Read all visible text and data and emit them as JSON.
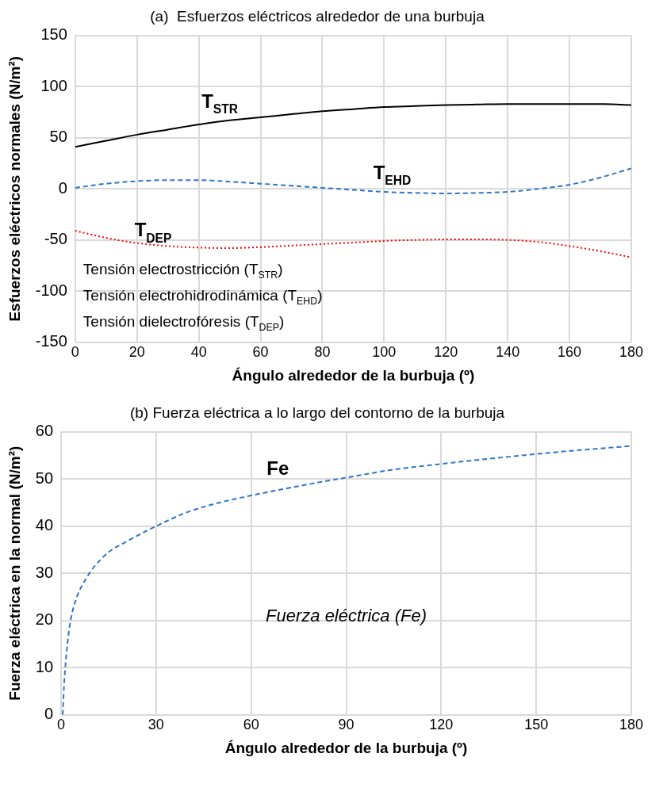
{
  "chart_data": [
    {
      "type": "line",
      "title": "(a)  Esfuerzos eléctricos alrededor de una burbuja",
      "xlabel": "Ángulo alrededor de la burbuja (º)",
      "ylabel": "Esfuerzos eléctricos normales (N/m²)",
      "x": [
        0,
        10,
        20,
        30,
        40,
        50,
        60,
        70,
        80,
        90,
        100,
        110,
        120,
        130,
        140,
        150,
        160,
        170,
        180
      ],
      "series": [
        {
          "name": "T$_{STR}$",
          "color": "#000000",
          "line_style": "solid",
          "values": [
            41,
            47,
            53,
            58,
            63,
            67,
            70,
            73,
            76,
            78,
            80,
            81,
            82,
            82.5,
            83,
            83,
            83,
            83,
            82
          ]
        },
        {
          "name": "T$_{EHD}$",
          "color": "#2e75c6",
          "line_style": "dashed",
          "values": [
            1,
            5,
            7.5,
            8.5,
            8.5,
            7,
            5,
            3,
            1,
            -1,
            -3,
            -4,
            -4.5,
            -4,
            -3,
            0,
            4,
            11,
            20
          ]
        },
        {
          "name": "T$_{DEP}$",
          "color": "#ff0000",
          "line_style": "dotted",
          "values": [
            -41,
            -48,
            -53,
            -56,
            -57.5,
            -58,
            -57,
            -55.5,
            -54,
            -52.5,
            -51,
            -50,
            -49.5,
            -49.5,
            -50,
            -52,
            -56,
            -61,
            -67
          ]
        }
      ],
      "xlim": [
        0,
        180
      ],
      "xticks": [
        0,
        20,
        40,
        60,
        80,
        100,
        120,
        140,
        160,
        180
      ],
      "ylim": [
        -150,
        150
      ],
      "yticks": [
        -150,
        -100,
        -50,
        0,
        50,
        100,
        150
      ],
      "grid": true,
      "marker": "none",
      "annotations": [
        "Tensión electrostricción (T$_{STR}$)",
        "Tensión electrohidrodinámica (T$_{EHD}$)",
        "Tensión dielectrofóresis (T$_{DEP}$)"
      ]
    },
    {
      "type": "line",
      "title": "(b) Fuerza eléctrica a lo largo del contorno de la burbuja",
      "xlabel": "Ángulo alrededor de la burbuja (º)",
      "ylabel": "Fuerza eléctrica en la normal (N/m²)",
      "x": [
        0.5,
        1,
        2,
        3,
        5,
        8,
        10,
        15,
        20,
        30,
        40,
        50,
        60,
        75,
        90,
        105,
        120,
        135,
        150,
        165,
        180
      ],
      "series": [
        {
          "name": "Fe",
          "color": "#2e75c6",
          "line_style": "dashed",
          "values": [
            0,
            7,
            15,
            20,
            25,
            29,
            31,
            34.5,
            36.5,
            40,
            43,
            45,
            46.5,
            48.5,
            50.3,
            52,
            53.2,
            54.3,
            55.3,
            56.2,
            57
          ]
        }
      ],
      "xlim": [
        0,
        180
      ],
      "xticks": [
        0,
        30,
        60,
        90,
        120,
        150,
        180
      ],
      "ylim": [
        0,
        60
      ],
      "yticks": [
        0,
        10,
        20,
        30,
        40,
        50,
        60
      ],
      "grid": true,
      "marker": "none",
      "annotations": [
        "Fuerza eléctrica (Fe)"
      ]
    }
  ]
}
